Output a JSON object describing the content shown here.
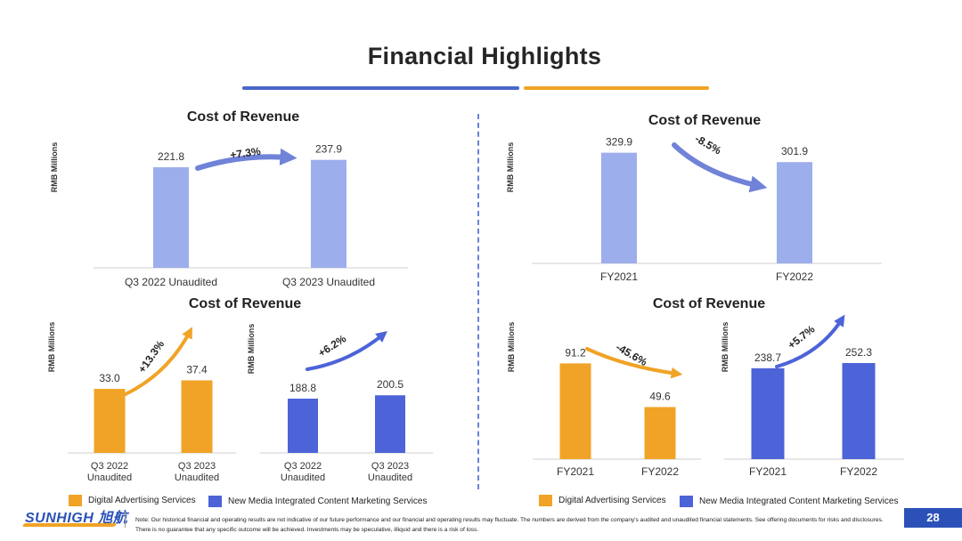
{
  "header": {
    "title": "Financial Highlights"
  },
  "colors": {
    "total": "#9daeec",
    "digital": "#f0a326",
    "newmedia": "#4d63d8",
    "arrow_blue": "#7083d8",
    "arrow_orange": "#f0a326"
  },
  "legend_left": {
    "digital": "Digital Advertising Services",
    "newmedia": "New Media Integrated Content Marketing Services"
  },
  "legend_right": {
    "digital": "Digital Advertising Services",
    "newmedia": "New Media Integrated Content Marketing Services"
  },
  "chart_data": [
    {
      "id": "q3-total",
      "type": "bar",
      "title": "Cost of Revenue",
      "ylabel": "RMB Millions",
      "categories": [
        "Q3 2022 Unaudited",
        "Q3 2023 Unaudited"
      ],
      "values": [
        221.8,
        237.9
      ],
      "value_labels": [
        "221.8",
        "237.9"
      ],
      "change": "+7.3%",
      "color_key": "total"
    },
    {
      "id": "fy-total",
      "type": "bar",
      "title": "Cost of Revenue",
      "ylabel": "RMB Millions",
      "categories": [
        "FY2021",
        "FY2022"
      ],
      "values": [
        329.9,
        301.9
      ],
      "value_labels": [
        "329.9",
        "301.9"
      ],
      "change": "-8.5%",
      "color_key": "total"
    },
    {
      "id": "q3-digital",
      "type": "bar",
      "title": "Cost of Revenue",
      "ylabel": "RMB Millions",
      "categories": [
        "Q3 2022 Unaudited",
        "Q3 2023 Unaudited"
      ],
      "values": [
        33.0,
        37.4
      ],
      "value_labels": [
        "33.0",
        "37.4"
      ],
      "change": "+13.3%",
      "color_key": "digital"
    },
    {
      "id": "q3-newmedia",
      "type": "bar",
      "ylabel": "RMB Millions",
      "categories": [
        "Q3 2022 Unaudited",
        "Q3 2023 Unaudited"
      ],
      "values": [
        188.8,
        200.5
      ],
      "value_labels": [
        "188.8",
        "200.5"
      ],
      "change": "+6.2%",
      "color_key": "newmedia"
    },
    {
      "id": "fy-digital",
      "type": "bar",
      "title": "Cost of Revenue",
      "ylabel": "RMB Millions",
      "categories": [
        "FY2021",
        "FY2022"
      ],
      "values": [
        91.2,
        49.6
      ],
      "value_labels": [
        "91.2",
        "49.6"
      ],
      "change": "-45.6%",
      "color_key": "digital"
    },
    {
      "id": "fy-newmedia",
      "type": "bar",
      "ylabel": "RMB Millions",
      "categories": [
        "FY2021",
        "FY2022"
      ],
      "values": [
        238.7,
        252.3
      ],
      "value_labels": [
        "238.7",
        "252.3"
      ],
      "change": "+5.7%",
      "color_key": "newmedia"
    }
  ],
  "footer": {
    "logo_text": "SUNHIGH 旭航",
    "note": "Note: Our historical financial and operating results are not indicative of our future performance and our financial and operating results may fluctuate. The numbers are derived from the company's audited and unaudited financial statements. See offering documents for risks and disclosures. There is no guarantee that any specific outcome will be achieved. Investments may be speculative, illiquid and there is a risk of loss.",
    "page_number": "28"
  }
}
